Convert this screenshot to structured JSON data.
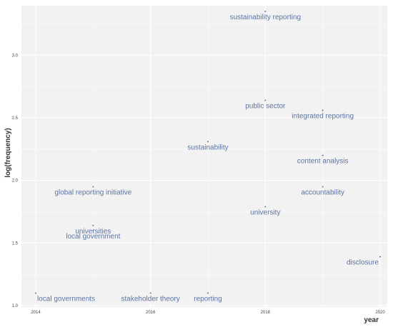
{
  "chart_data": {
    "type": "scatter",
    "xlabel": "year",
    "ylabel": "log(frequency)",
    "xlim": [
      2014,
      2020
    ],
    "ylim": [
      1.0,
      3.35
    ],
    "x_ticks": [
      "2014",
      "2016",
      "2018",
      "2020"
    ],
    "y_ticks": [
      "1.0",
      "1.5",
      "2.0",
      "2.5",
      "3.0"
    ],
    "grid": true,
    "points": [
      {
        "label": "sustainability reporting",
        "x": 2018,
        "y": 3.35
      },
      {
        "label": "public sector",
        "x": 2018,
        "y": 2.64
      },
      {
        "label": "integrated reporting",
        "x": 2019,
        "y": 2.56
      },
      {
        "label": "sustainability",
        "x": 2017,
        "y": 2.31
      },
      {
        "label": "content analysis",
        "x": 2019,
        "y": 2.2
      },
      {
        "label": "global reporting initiative",
        "x": 2015,
        "y": 1.95
      },
      {
        "label": "accountability",
        "x": 2019,
        "y": 1.95
      },
      {
        "label": "university",
        "x": 2018,
        "y": 1.79
      },
      {
        "label": "universities",
        "x": 2015,
        "y": 1.64
      },
      {
        "label": "local government",
        "x": 2015,
        "y": 1.6
      },
      {
        "label": "disclosure",
        "x": 2020,
        "y": 1.39
      },
      {
        "label": "local governments",
        "x": 2014,
        "y": 1.1
      },
      {
        "label": "stakeholder theory",
        "x": 2016,
        "y": 1.1
      },
      {
        "label": "reporting",
        "x": 2017,
        "y": 1.1
      }
    ]
  },
  "colors": {
    "panel": "#f2f2f2",
    "grid": "#ffffff",
    "label": "#5b74a6",
    "point": "#5b74a6"
  }
}
